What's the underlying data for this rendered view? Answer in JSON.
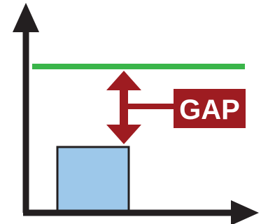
{
  "labels": {
    "gap": "GAP"
  },
  "colors": {
    "axis": "#231f20",
    "target_line": "#3ab54a",
    "gap_marker": "#9e1c21",
    "label_text": "#ffffff",
    "bar_fill": "#9dc8ea",
    "bar_stroke": "#231f20"
  },
  "icons": {
    "gap_marker": "double-headed-arrow-icon",
    "axes": "arrow-icon"
  }
}
